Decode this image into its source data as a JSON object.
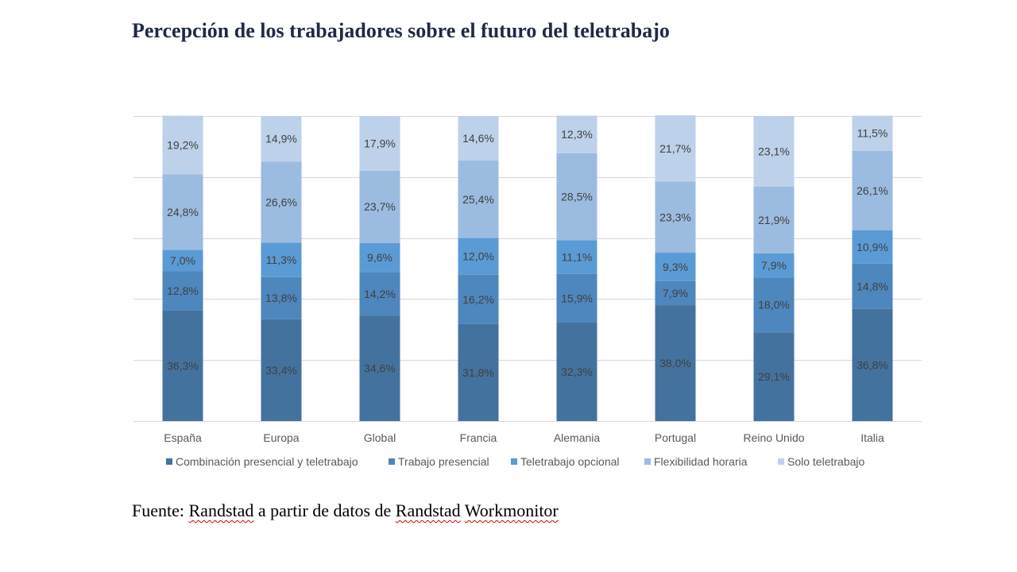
{
  "title": "Percepción de los trabajadores sobre el futuro del teletrabajo",
  "source": {
    "prefix": "Fuente: ",
    "word1": "Randstad",
    "middle": " a partir de datos de ",
    "word2": "Randstad",
    "space": " ",
    "word3": "Workmonitor"
  },
  "chart_data": {
    "type": "bar",
    "stacked": true,
    "categories": [
      "España",
      "Europa",
      "Global",
      "Francia",
      "Alemania",
      "Portugal",
      "Reino Unido",
      "Italia"
    ],
    "series": [
      {
        "name": "Combinación presencial y teletrabajo",
        "color": "#44729e",
        "values": [
          36.3,
          33.4,
          34.6,
          31.8,
          32.3,
          38.0,
          29.1,
          36.8
        ],
        "labels": [
          "36,3%",
          "33,4%",
          "34,6%",
          "31,8%",
          "32,3%",
          "38,0%",
          "29,1%",
          "36,8%"
        ]
      },
      {
        "name": "Trabajo presencial",
        "color": "#4e86be",
        "values": [
          12.8,
          13.8,
          14.2,
          16.2,
          15.9,
          7.9,
          18.0,
          14.8
        ],
        "labels": [
          "12,8%",
          "13,8%",
          "14,2%",
          "16,2%",
          "15,9%",
          "7,9%",
          "18,0%",
          "14,8%"
        ]
      },
      {
        "name": "Teletrabajo opcional",
        "color": "#5b9bd5",
        "values": [
          7.0,
          11.3,
          9.6,
          12.0,
          11.1,
          9.3,
          7.9,
          10.9
        ],
        "labels": [
          "7,0%",
          "11,3%",
          "9,6%",
          "12,0%",
          "11,1%",
          "9,3%",
          "7,9%",
          "10,9%"
        ]
      },
      {
        "name": "Flexibilidad horaria",
        "color": "#9cbbe0",
        "values": [
          24.8,
          26.6,
          23.7,
          25.4,
          28.5,
          23.3,
          21.9,
          26.1
        ],
        "labels": [
          "24,8%",
          "26,6%",
          "23,7%",
          "25,4%",
          "28,5%",
          "23,3%",
          "21,9%",
          "26,1%"
        ]
      },
      {
        "name": "Solo teletrabajo",
        "color": "#bdd1ea",
        "values": [
          19.2,
          14.9,
          17.9,
          14.6,
          12.3,
          21.7,
          23.1,
          11.5
        ],
        "labels": [
          "19,2%",
          "14,9%",
          "17,9%",
          "14,6%",
          "12,3%",
          "21,7%",
          "23,1%",
          "11,5%"
        ]
      }
    ],
    "ylim": [
      0,
      100
    ],
    "grid": true,
    "legend": "bottom"
  }
}
